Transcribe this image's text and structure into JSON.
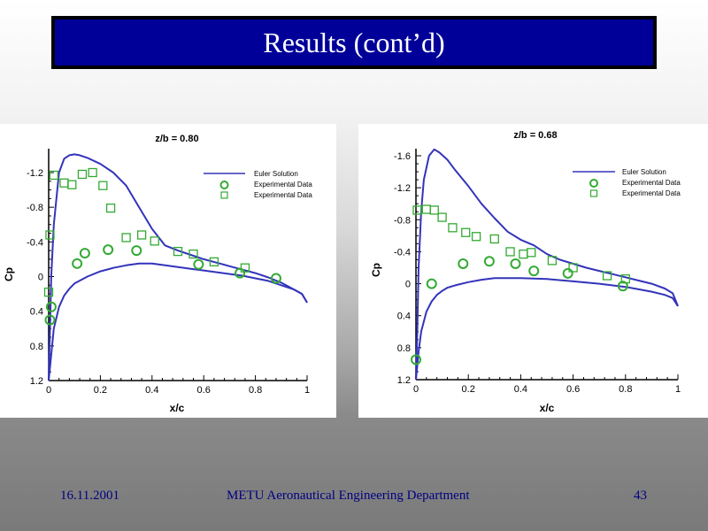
{
  "slide": {
    "title": "Results (cont’d)",
    "footer": {
      "date": "16.11.2001",
      "organization": "METU Aeronautical Engineering Department",
      "page_number": "43"
    },
    "colors": {
      "title_bg": "#000099",
      "title_border": "#000000",
      "footer_text": "#000080",
      "euler_line": "#3333bb",
      "experimental": "#33aa33"
    }
  },
  "chart_data": [
    {
      "type": "line",
      "title": "z/b = 0.80",
      "xlabel": "x/c",
      "ylabel": "Cp",
      "xlim": [
        0,
        1
      ],
      "ylim": [
        -1.45,
        1.2
      ],
      "y_inverted": true,
      "xticks": [
        "0",
        "0.2",
        "0.4",
        "0.6",
        "0.8",
        "1"
      ],
      "xtick_values": [
        0,
        0.2,
        0.4,
        0.6,
        0.8,
        1
      ],
      "yticks": [
        "-1.2",
        "-0.8",
        "-0.4",
        "0",
        "0.4",
        "0.8",
        "1.2"
      ],
      "ytick_values": [
        -1.2,
        -0.8,
        -0.4,
        0,
        0.4,
        0.8,
        1.2
      ],
      "legend": {
        "placement": "top-right",
        "entries": [
          "Euler Solution",
          "Experimental Data",
          "Experimental Data"
        ]
      },
      "series": [
        {
          "name": "Euler Solution (upper)",
          "kind": "line",
          "x": [
            0.0,
            0.005,
            0.01,
            0.02,
            0.04,
            0.06,
            0.08,
            0.1,
            0.12,
            0.15,
            0.2,
            0.25,
            0.3,
            0.35,
            0.4,
            0.45,
            0.5,
            0.55,
            0.6,
            0.65,
            0.7,
            0.75,
            0.8,
            0.85,
            0.9,
            0.95,
            0.98,
            1.0
          ],
          "y": [
            1.2,
            0.6,
            0.0,
            -0.6,
            -1.2,
            -1.36,
            -1.4,
            -1.41,
            -1.4,
            -1.37,
            -1.3,
            -1.2,
            -1.05,
            -0.8,
            -0.55,
            -0.36,
            -0.3,
            -0.25,
            -0.2,
            -0.16,
            -0.12,
            -0.08,
            -0.04,
            0.01,
            0.07,
            0.15,
            0.2,
            0.3
          ]
        },
        {
          "name": "Euler Solution (lower)",
          "kind": "line",
          "x": [
            0.0,
            0.01,
            0.02,
            0.04,
            0.06,
            0.08,
            0.1,
            0.15,
            0.2,
            0.25,
            0.3,
            0.35,
            0.4,
            0.45,
            0.5,
            0.55,
            0.6,
            0.65,
            0.7,
            0.75,
            0.8,
            0.85,
            0.9,
            0.95,
            0.98,
            1.0
          ],
          "y": [
            1.2,
            0.9,
            0.6,
            0.35,
            0.22,
            0.14,
            0.08,
            0.0,
            -0.06,
            -0.1,
            -0.13,
            -0.15,
            -0.15,
            -0.13,
            -0.11,
            -0.09,
            -0.07,
            -0.05,
            -0.03,
            -0.01,
            0.02,
            0.05,
            0.1,
            0.15,
            0.2,
            0.3
          ]
        },
        {
          "name": "Experimental Data (circles)",
          "kind": "scatter",
          "marker": "circle",
          "x": [
            0.005,
            0.01,
            0.11,
            0.14,
            0.23,
            0.34,
            0.58,
            0.74,
            0.88
          ],
          "y": [
            0.5,
            0.35,
            -0.15,
            -0.27,
            -0.31,
            -0.3,
            -0.14,
            -0.04,
            0.02
          ]
        },
        {
          "name": "Experimental Data (squares)",
          "kind": "scatter",
          "marker": "square",
          "x": [
            0.0,
            0.005,
            0.02,
            0.06,
            0.09,
            0.13,
            0.17,
            0.21,
            0.24,
            0.3,
            0.36,
            0.41,
            0.5,
            0.56,
            0.64,
            0.76
          ],
          "y": [
            0.18,
            -0.48,
            -1.17,
            -1.08,
            -1.06,
            -1.18,
            -1.2,
            -1.05,
            -0.79,
            -0.45,
            -0.48,
            -0.41,
            -0.29,
            -0.26,
            -0.17,
            -0.1
          ]
        }
      ]
    },
    {
      "type": "line",
      "title": "z/b = 0.68",
      "xlabel": "x/c",
      "ylabel": "Cp",
      "xlim": [
        0,
        1
      ],
      "ylim": [
        -1.75,
        1.2
      ],
      "y_inverted": true,
      "xticks": [
        "0",
        "0.2",
        "0.4",
        "0.6",
        "0.8",
        "1"
      ],
      "xtick_values": [
        0,
        0.2,
        0.4,
        0.6,
        0.8,
        1
      ],
      "yticks": [
        "-1.6",
        "-1.2",
        "-0.8",
        "-0.4",
        "0",
        "0.4",
        "0.8",
        "1.2"
      ],
      "ytick_values": [
        -1.6,
        -1.2,
        -0.8,
        -0.4,
        0,
        0.4,
        0.8,
        1.2
      ],
      "legend": {
        "placement": "top-right",
        "entries": [
          "Euler Solution",
          "Experimental Data",
          "Experimental Data"
        ]
      },
      "series": [
        {
          "name": "Euler Solution (upper)",
          "kind": "line",
          "x": [
            0.0,
            0.005,
            0.01,
            0.02,
            0.03,
            0.05,
            0.07,
            0.09,
            0.12,
            0.15,
            0.2,
            0.25,
            0.3,
            0.35,
            0.4,
            0.45,
            0.5,
            0.55,
            0.6,
            0.65,
            0.7,
            0.75,
            0.8,
            0.85,
            0.9,
            0.95,
            0.98,
            1.0
          ],
          "y": [
            1.2,
            0.6,
            -0.2,
            -0.9,
            -1.3,
            -1.6,
            -1.68,
            -1.64,
            -1.55,
            -1.42,
            -1.22,
            -1.0,
            -0.82,
            -0.65,
            -0.55,
            -0.48,
            -0.37,
            -0.3,
            -0.25,
            -0.2,
            -0.16,
            -0.12,
            -0.08,
            -0.04,
            0.0,
            0.06,
            0.12,
            0.28
          ]
        },
        {
          "name": "Euler Solution (lower)",
          "kind": "line",
          "x": [
            0.0,
            0.01,
            0.02,
            0.04,
            0.06,
            0.08,
            0.1,
            0.12,
            0.15,
            0.2,
            0.25,
            0.3,
            0.4,
            0.5,
            0.6,
            0.7,
            0.8,
            0.85,
            0.9,
            0.95,
            0.98,
            1.0
          ],
          "y": [
            1.2,
            0.85,
            0.6,
            0.35,
            0.22,
            0.14,
            0.09,
            0.05,
            0.02,
            -0.02,
            -0.05,
            -0.07,
            -0.07,
            -0.06,
            -0.03,
            0.0,
            0.04,
            0.07,
            0.1,
            0.14,
            0.18,
            0.28
          ]
        },
        {
          "name": "Experimental Data (circles)",
          "kind": "scatter",
          "marker": "circle",
          "x": [
            0.0,
            0.06,
            0.18,
            0.28,
            0.38,
            0.45,
            0.58,
            0.79
          ],
          "y": [
            0.95,
            0.0,
            -0.25,
            -0.28,
            -0.25,
            -0.16,
            -0.13,
            0.03
          ]
        },
        {
          "name": "Experimental Data (squares)",
          "kind": "scatter",
          "marker": "square",
          "x": [
            0.005,
            0.04,
            0.07,
            0.1,
            0.14,
            0.19,
            0.23,
            0.3,
            0.36,
            0.41,
            0.44,
            0.52,
            0.6,
            0.73,
            0.8
          ],
          "y": [
            -0.92,
            -0.93,
            -0.92,
            -0.83,
            -0.7,
            -0.64,
            -0.59,
            -0.56,
            -0.4,
            -0.37,
            -0.39,
            -0.29,
            -0.2,
            -0.1,
            -0.06
          ]
        }
      ]
    }
  ]
}
